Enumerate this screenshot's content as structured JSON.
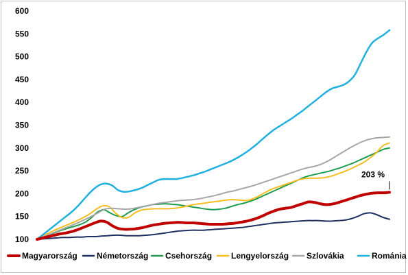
{
  "chart_data": {
    "type": "line",
    "title": "",
    "xlabel": "",
    "ylabel": "",
    "ylim": [
      100,
      600
    ],
    "yticks": [
      100,
      150,
      200,
      250,
      300,
      350,
      400,
      450,
      500,
      550,
      600
    ],
    "grid": false,
    "legend_position": "bottom",
    "x": [
      0,
      1,
      2,
      3,
      4,
      5,
      6,
      7,
      8,
      9,
      10,
      11,
      12,
      13,
      14,
      15,
      16,
      17,
      18,
      19,
      20,
      21,
      22,
      23,
      24,
      25,
      26,
      27,
      28,
      29,
      30,
      31,
      32,
      33,
      34,
      35,
      36,
      37,
      38,
      39,
      40,
      41,
      42,
      43,
      44,
      45,
      46,
      47,
      48,
      49,
      50,
      51,
      52,
      53,
      54,
      55,
      56,
      57,
      58,
      59,
      60,
      61,
      62,
      63,
      64,
      65,
      66,
      67,
      68,
      69,
      70,
      71,
      72,
      73,
      74,
      75,
      76,
      77,
      78,
      79,
      80
    ],
    "series": [
      {
        "name": "Magyarország",
        "color": "#c00000",
        "width": 4,
        "values": [
          100,
          103,
          106,
          109,
          112,
          114,
          117,
          121,
          126,
          131,
          136,
          140,
          138,
          130,
          124,
          122,
          122,
          123,
          125,
          128,
          131,
          133,
          135,
          136,
          137,
          137,
          136,
          136,
          135,
          134,
          133,
          133,
          133,
          134,
          135,
          137,
          139,
          142,
          146,
          151,
          157,
          162,
          166,
          168,
          170,
          174,
          178,
          182,
          181,
          178,
          176,
          177,
          180,
          184,
          188,
          192,
          196,
          199,
          201,
          202,
          202,
          203,
          203,
          203,
          203,
          203,
          203,
          203,
          203,
          203,
          203,
          203,
          203,
          203,
          203,
          203,
          203,
          203,
          203,
          203,
          203
        ]
      },
      {
        "name": "Németország",
        "color": "#1f2f5f",
        "width": 2,
        "values": [
          100,
          101,
          102,
          103,
          104,
          104,
          105,
          105,
          106,
          106,
          107,
          108,
          109,
          109,
          108,
          108,
          108,
          109,
          110,
          112,
          114,
          116,
          118,
          119,
          120,
          120,
          120,
          121,
          122,
          123,
          124,
          125,
          126,
          128,
          130,
          132,
          134,
          136,
          137,
          138,
          139,
          140,
          141,
          141,
          141,
          140,
          140,
          141,
          142,
          145,
          150,
          156,
          158,
          154,
          148,
          144,
          144,
          144,
          144,
          144,
          144,
          144,
          144,
          144,
          144,
          144,
          144,
          144,
          144,
          144,
          144,
          144,
          144,
          144,
          144,
          144,
          144,
          144,
          144,
          144,
          144
        ]
      },
      {
        "name": "Csehország",
        "color": "#1e9b4f",
        "width": 2,
        "values": [
          100,
          105,
          110,
          115,
          120,
          124,
          128,
          132,
          138,
          148,
          160,
          165,
          158,
          152,
          150,
          158,
          165,
          170,
          173,
          176,
          177,
          178,
          177,
          176,
          174,
          172,
          170,
          168,
          166,
          165,
          166,
          168,
          172,
          176,
          179,
          183,
          188,
          194,
          200,
          206,
          212,
          218,
          224,
          230,
          236,
          240,
          243,
          246,
          249,
          253,
          257,
          262,
          267,
          273,
          279,
          285,
          291,
          297,
          300,
          300,
          300,
          300,
          300,
          300,
          300,
          300,
          300,
          300,
          300,
          300,
          300,
          300,
          300,
          300,
          300,
          300,
          300,
          300,
          300,
          300,
          300
        ]
      },
      {
        "name": "Lengyelország",
        "color": "#f5bd1f",
        "width": 2,
        "values": [
          100,
          108,
          115,
          122,
          128,
          134,
          140,
          147,
          155,
          165,
          173,
          172,
          158,
          148,
          148,
          158,
          164,
          166,
          167,
          167,
          167,
          168,
          170,
          173,
          176,
          178,
          180,
          182,
          184,
          186,
          187,
          186,
          185,
          188,
          195,
          203,
          210,
          215,
          220,
          225,
          230,
          233,
          234,
          234,
          235,
          238,
          243,
          248,
          254,
          261,
          268,
          278,
          290,
          305,
          311,
          311,
          311,
          311,
          311,
          311,
          311,
          311,
          311,
          311,
          311,
          311,
          311,
          311,
          311,
          311,
          311,
          311,
          311,
          311,
          311,
          311,
          311,
          311,
          311,
          311,
          311
        ]
      },
      {
        "name": "Szlovákia",
        "color": "#a6a6a6",
        "width": 2,
        "values": [
          100,
          106,
          112,
          118,
          124,
          130,
          136,
          143,
          150,
          158,
          166,
          168,
          167,
          166,
          167,
          170,
          173,
          176,
          179,
          181,
          183,
          185,
          186,
          187,
          189,
          192,
          195,
          199,
          203,
          206,
          210,
          214,
          218,
          223,
          228,
          233,
          238,
          243,
          248,
          253,
          257,
          260,
          265,
          272,
          281,
          290,
          299,
          307,
          314,
          319,
          322,
          323,
          324,
          324,
          324,
          324,
          324,
          324,
          324,
          324,
          324,
          324,
          324,
          324,
          324,
          324,
          324,
          324,
          324,
          324,
          324,
          324,
          324,
          324,
          324,
          324,
          324,
          324,
          324,
          324,
          324
        ]
      },
      {
        "name": "Románia",
        "color": "#1fb0e0",
        "width": 2.5,
        "values": [
          100,
          110,
          120,
          130,
          140,
          150,
          160,
          172,
          186,
          200,
          212,
          220,
          222,
          218,
          208,
          204,
          205,
          208,
          212,
          218,
          224,
          230,
          232,
          232,
          232,
          234,
          237,
          240,
          244,
          248,
          253,
          258,
          263,
          268,
          274,
          281,
          289,
          298,
          308,
          319,
          330,
          340,
          348,
          356,
          364,
          373,
          382,
          392,
          402,
          412,
          422,
          430,
          434,
          438,
          446,
          460,
          485,
          510,
          530,
          540,
          548,
          558,
          558,
          558,
          558,
          558,
          558,
          558,
          558,
          558,
          558,
          558,
          558,
          558,
          558,
          558,
          558,
          558,
          558,
          558,
          558
        ]
      }
    ],
    "annotations": [
      {
        "text": "203 %",
        "series": "Magyarország",
        "value": 203
      }
    ]
  }
}
